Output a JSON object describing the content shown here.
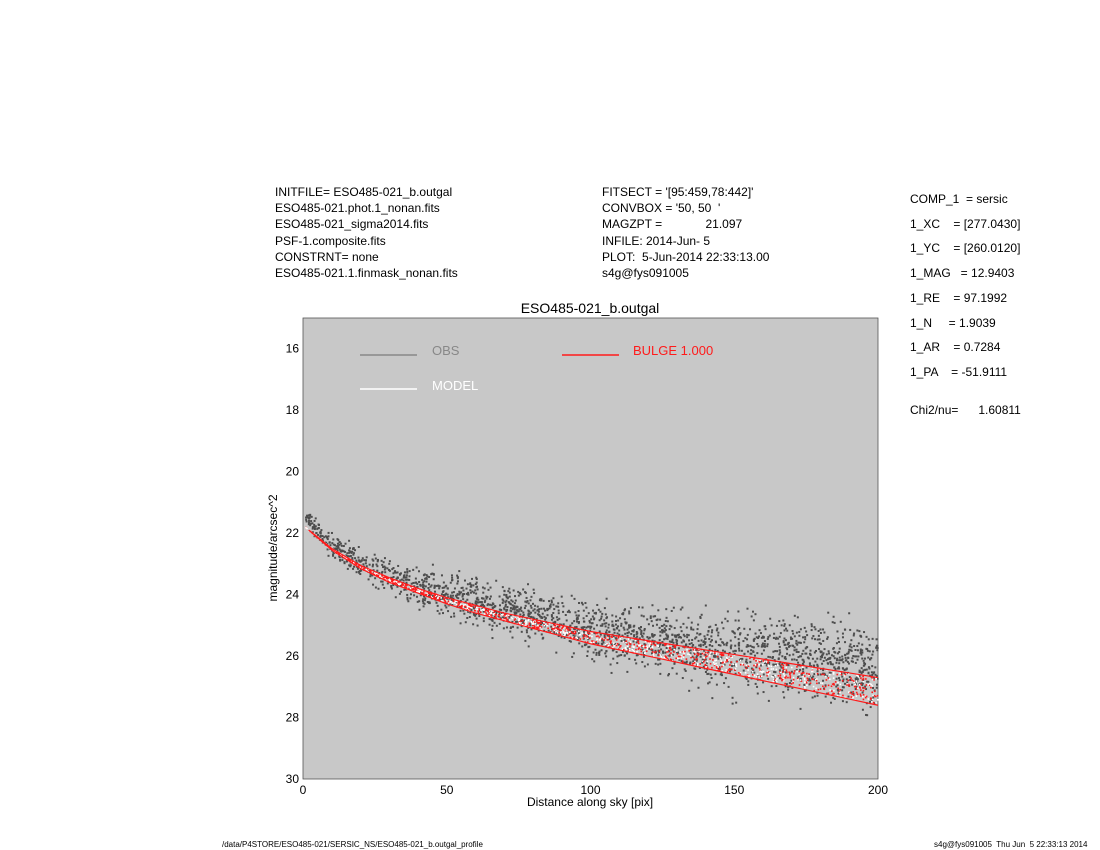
{
  "header": {
    "left": [
      "INITFILE= ESO485-021_b.outgal",
      "ESO485-021.phot.1_nonan.fits",
      "ESO485-021_sigma2014.fits",
      "PSF-1.composite.fits",
      "CONSTRNT= none",
      "ESO485-021.1.finmask_nonan.fits"
    ],
    "middle": [
      "FITSECT = '[95:459,78:442]'",
      "CONVBOX = '50, 50  '",
      "MAGZPT =             21.097",
      "INFILE: 2014-Jun- 5",
      "PLOT:  5-Jun-2014 22:33:13.00",
      "s4g@fys091005"
    ]
  },
  "params": [
    "COMP_1  = sersic",
    "1_XC    = [277.0430]",
    "1_YC    = [260.0120]",
    "1_MAG   = 12.9403",
    "1_RE    = 97.1992",
    "1_N     = 1.9039",
    "1_AR    = 0.7284",
    "1_PA    = -51.9111"
  ],
  "chi2": "Chi2/nu=      1.60811",
  "footer": {
    "left": "/data/P4STORE/ESO485-021/SERSIC_NS/ESO485-021_b.outgal_profile",
    "right": "s4g@fys091005  Thu Jun  5 22:33:13 2014"
  },
  "colors": {
    "plot_bg": "#c8c8c8",
    "obs": "#4d4d4d",
    "obs_legend": "#888888",
    "model": "#ffffff",
    "bulge": "#ff1a1a"
  },
  "chart_data": {
    "type": "scatter",
    "title": "ESO485-021_b.outgal",
    "xlabel": "Distance along sky [pix]",
    "ylabel": "magnitude/arcsec^2",
    "xlim": [
      0,
      200
    ],
    "ylim": [
      30,
      15
    ],
    "xticks": [
      0,
      50,
      100,
      150,
      200
    ],
    "yticks": [
      16,
      18,
      20,
      22,
      24,
      26,
      28,
      30
    ],
    "legend": [
      {
        "name": "OBS",
        "color": "#888888"
      },
      {
        "name": "MODEL",
        "color": "#ffffff"
      },
      {
        "name": "BULGE  1.000",
        "color": "#ff1a1a"
      }
    ],
    "series": [
      {
        "name": "OBS",
        "description_points": "surface brightness samples, mean trend",
        "x": [
          2,
          10,
          20,
          30,
          40,
          50,
          60,
          70,
          80,
          90,
          100,
          110,
          120,
          130,
          140,
          150,
          160,
          170,
          180,
          190,
          200
        ],
        "y": [
          21.6,
          22.4,
          23.0,
          23.4,
          23.7,
          24.0,
          24.25,
          24.5,
          24.7,
          24.9,
          25.1,
          25.3,
          25.45,
          25.6,
          25.75,
          25.9,
          26.0,
          26.1,
          26.2,
          26.3,
          26.4
        ],
        "spread": [
          0.2,
          0.35,
          0.45,
          0.5,
          0.55,
          0.6,
          0.6,
          0.65,
          0.7,
          0.75,
          0.8,
          0.85,
          0.9,
          0.95,
          1.0,
          1.05,
          1.1,
          1.15,
          1.2,
          1.2,
          1.25
        ]
      },
      {
        "name": "BULGE  1.000",
        "x": [
          2,
          10,
          20,
          30,
          40,
          50,
          60,
          70,
          80,
          90,
          100,
          110,
          120,
          130,
          140,
          150,
          160,
          170,
          180,
          190,
          200
        ],
        "y_upper": [
          21.9,
          22.5,
          23.05,
          23.45,
          23.8,
          24.1,
          24.35,
          24.6,
          24.8,
          25.0,
          25.2,
          25.35,
          25.5,
          25.65,
          25.8,
          25.95,
          26.1,
          26.25,
          26.4,
          26.55,
          26.7
        ],
        "y_lower": [
          21.9,
          22.55,
          23.15,
          23.6,
          23.95,
          24.3,
          24.6,
          24.85,
          25.1,
          25.35,
          25.6,
          25.8,
          26.0,
          26.2,
          26.4,
          26.6,
          26.8,
          27.0,
          27.2,
          27.4,
          27.6
        ]
      }
    ]
  }
}
